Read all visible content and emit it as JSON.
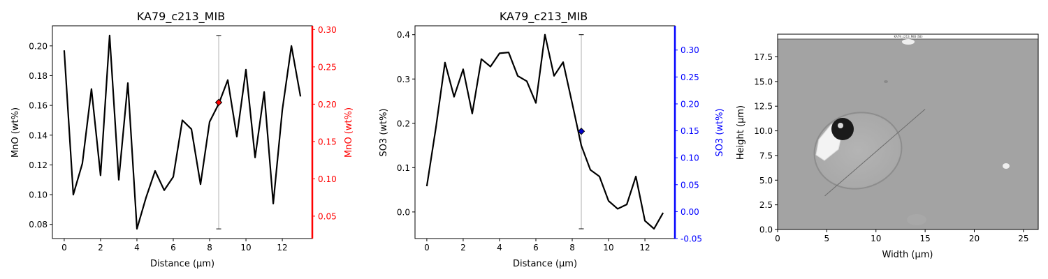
{
  "chart_data": [
    {
      "type": "line",
      "title": "KA79_c213_MIB",
      "xlabel": "Distance (µm)",
      "ylabel": "MnO (wt%)",
      "ylabel_right": "MnO (wt%)",
      "xlim": [
        -0.65,
        13.65
      ],
      "ylim": [
        0.0705,
        0.2135
      ],
      "ylim_right": [
        0.02,
        0.305
      ],
      "x_ticks": [
        0,
        2,
        4,
        6,
        8,
        10,
        12
      ],
      "y_ticks": [
        0.08,
        0.1,
        0.12,
        0.14,
        0.16,
        0.18,
        0.2
      ],
      "y_ticks_right": [
        0.05,
        0.1,
        0.15,
        0.2,
        0.25,
        0.3
      ],
      "right_axis_color": "#ff0000",
      "line_color": "#000000",
      "series": [
        {
          "x": [
            0,
            0.5,
            1,
            1.5,
            2,
            2.5,
            3,
            3.5,
            4,
            4.5,
            5,
            5.5,
            6,
            6.5,
            7,
            7.5,
            8,
            8.5,
            9,
            9.5,
            10,
            10.5,
            11,
            11.5,
            12,
            12.5,
            13
          ],
          "values": [
            0.197,
            0.1,
            0.121,
            0.171,
            0.113,
            0.207,
            0.11,
            0.175,
            0.077,
            0.098,
            0.116,
            0.103,
            0.112,
            0.15,
            0.144,
            0.107,
            0.149,
            0.161,
            0.177,
            0.139,
            0.184,
            0.125,
            0.169,
            0.094,
            0.157,
            0.2,
            0.166
          ]
        }
      ],
      "marker": {
        "x": 8.5,
        "y": 0.162,
        "y_low": 0.077,
        "y_high": 0.207,
        "color": "#ff0000"
      }
    },
    {
      "type": "line",
      "title": "KA79_c213_MIB",
      "xlabel": "Distance (µm)",
      "ylabel": "SO3 (wt%)",
      "ylabel_right": "SO3 (wt%)",
      "xlim": [
        -0.65,
        13.65
      ],
      "ylim": [
        -0.06,
        0.42
      ],
      "ylim_right": [
        -0.05,
        0.345
      ],
      "x_ticks": [
        0,
        2,
        4,
        6,
        8,
        10,
        12
      ],
      "y_ticks": [
        0.0,
        0.1,
        0.2,
        0.3,
        0.4
      ],
      "y_ticks_right": [
        -0.05,
        0.0,
        0.05,
        0.1,
        0.15,
        0.2,
        0.25,
        0.3
      ],
      "right_axis_color": "#0000ff",
      "line_color": "#000000",
      "series": [
        {
          "x": [
            0,
            0.5,
            1,
            1.5,
            2,
            2.5,
            3,
            3.5,
            4,
            4.5,
            5,
            5.5,
            6,
            6.5,
            7,
            7.5,
            8,
            8.5,
            9,
            9.5,
            10,
            10.5,
            11,
            11.5,
            12,
            12.5,
            13
          ],
          "values": [
            0.058,
            0.19,
            0.337,
            0.26,
            0.322,
            0.222,
            0.345,
            0.328,
            0.358,
            0.36,
            0.307,
            0.295,
            0.246,
            0.4,
            0.307,
            0.338,
            0.245,
            0.15,
            0.095,
            0.08,
            0.025,
            0.007,
            0.017,
            0.08,
            -0.02,
            -0.038,
            -0.002
          ]
        }
      ],
      "marker": {
        "x": 8.5,
        "y": 0.182,
        "y_low": -0.038,
        "y_high": 0.4,
        "color": "#0000cc"
      }
    },
    {
      "type": "image",
      "xlabel": "Width (µm)",
      "ylabel": "Height (µm)",
      "xlim": [
        0,
        26.5
      ],
      "ylim": [
        0,
        19.8
      ],
      "x_ticks": [
        0,
        5,
        10,
        15,
        20,
        25
      ],
      "y_ticks": [
        0.0,
        2.5,
        5.0,
        7.5,
        10.0,
        12.5,
        15.0,
        17.5
      ],
      "image_caption": "KA79_c213_MIB (SE)",
      "transect": {
        "x1": 4.8,
        "y1": 3.4,
        "x2": 15.0,
        "y2": 12.2
      }
    }
  ]
}
